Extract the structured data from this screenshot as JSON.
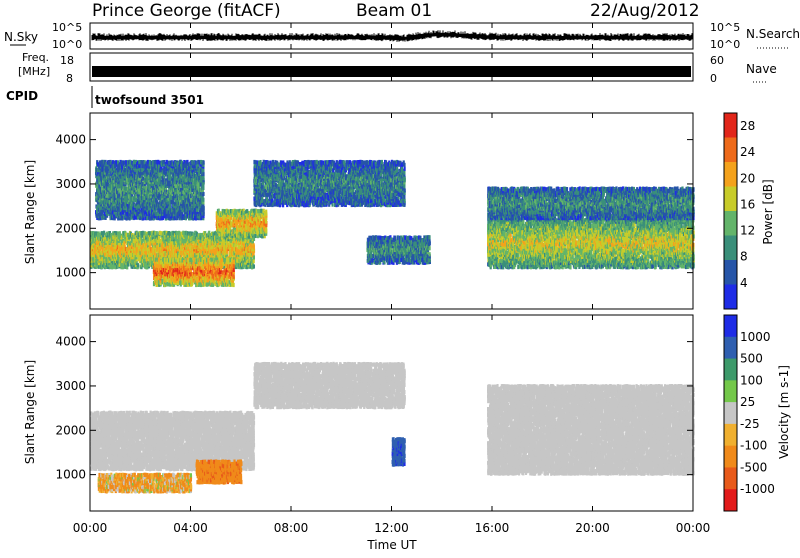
{
  "header": {
    "site": "Prince George (fitACF)",
    "beam": "Beam 01",
    "date": "22/Aug/2012"
  },
  "noise_panel": {
    "left_label": "N.Sky",
    "right_label": "N.Search",
    "left_ticks": [
      "10^5",
      "10^0"
    ],
    "right_ticks": [
      "10^5",
      "10^0"
    ]
  },
  "freq_panel": {
    "left_label_1": "Freq.",
    "left_label_2": "[MHz]",
    "left_ticks": [
      "18",
      "8"
    ],
    "right_label": "Nave",
    "right_ticks": [
      "60",
      "0"
    ]
  },
  "cpid": {
    "label": "CPID",
    "program": "twofsound 3501"
  },
  "x_axis": {
    "title": "Time UT",
    "ticks": [
      "00:00",
      "04:00",
      "08:00",
      "12:00",
      "16:00",
      "20:00",
      "00:00"
    ]
  },
  "colors": {
    "power_scale": [
      "#1e2ce6",
      "#2655a8",
      "#3a8f7a",
      "#63b46a",
      "#c8cc2a",
      "#f4a21c",
      "#ee6a1a",
      "#e2261a"
    ],
    "velocity_scale": [
      "#1e2ce6",
      "#2f5fb0",
      "#3d9a6a",
      "#74c84a",
      "#c6c6c6",
      "#f0b030",
      "#f08a1a",
      "#e85a1a",
      "#e21a1a"
    ]
  },
  "chart_data": [
    {
      "type": "heatmap",
      "title": "Power",
      "xlabel": "Time UT",
      "ylabel": "Slant Range [km]",
      "x_ticks": [
        "00:00",
        "04:00",
        "08:00",
        "12:00",
        "16:00",
        "20:00",
        "00:00"
      ],
      "xlim_hours": [
        0,
        24
      ],
      "y_ticks": [
        1000,
        2000,
        3000,
        4000
      ],
      "ylim": [
        180,
        4600
      ],
      "colorbar": {
        "label": "Power [dB]",
        "ticks": [
          4,
          8,
          12,
          16,
          20,
          24,
          28
        ],
        "range": [
          0,
          30
        ]
      },
      "echo_regions": [
        {
          "t_start": 0.0,
          "t_end": 6.5,
          "r_low": 1100,
          "r_high": 1900,
          "level": 20
        },
        {
          "t_start": 2.5,
          "t_end": 5.7,
          "r_low": 700,
          "r_high": 1300,
          "level": 26
        },
        {
          "t_start": 5.0,
          "t_end": 7.0,
          "r_low": 1800,
          "r_high": 2400,
          "level": 22
        },
        {
          "t_start": 0.2,
          "t_end": 4.5,
          "r_low": 2200,
          "r_high": 3500,
          "level": 10
        },
        {
          "t_start": 6.5,
          "t_end": 12.5,
          "r_low": 2500,
          "r_high": 3500,
          "level": 9
        },
        {
          "t_start": 11.0,
          "t_end": 13.5,
          "r_low": 1200,
          "r_high": 1800,
          "level": 10
        },
        {
          "t_start": 15.8,
          "t_end": 24.0,
          "r_low": 1100,
          "r_high": 2200,
          "level": 18
        },
        {
          "t_start": 15.8,
          "t_end": 24.0,
          "r_low": 2200,
          "r_high": 2900,
          "level": 10
        }
      ]
    },
    {
      "type": "heatmap",
      "title": "Velocity",
      "xlabel": "Time UT",
      "ylabel": "Slant Range [km]",
      "x_ticks": [
        "00:00",
        "04:00",
        "08:00",
        "12:00",
        "16:00",
        "20:00",
        "00:00"
      ],
      "xlim_hours": [
        0,
        24
      ],
      "y_ticks": [
        1000,
        2000,
        3000,
        4000
      ],
      "ylim": [
        180,
        4600
      ],
      "colorbar": {
        "label": "Velocity [m s-1]",
        "ticks": [
          "1000",
          "500",
          "100",
          "25",
          "-25",
          "-100",
          "-500",
          "-1000"
        ],
        "range": [
          -1000,
          1000
        ]
      },
      "echo_regions": [
        {
          "t_start": 0.0,
          "t_end": 6.5,
          "r_low": 1100,
          "r_high": 2400,
          "level": 0
        },
        {
          "t_start": 4.2,
          "t_end": 6.0,
          "r_low": 800,
          "r_high": 1300,
          "level": -400
        },
        {
          "t_start": 0.3,
          "t_end": 4.0,
          "r_low": 600,
          "r_high": 1000,
          "level": -100
        },
        {
          "t_start": 6.5,
          "t_end": 12.5,
          "r_low": 2500,
          "r_high": 3500,
          "level": 0
        },
        {
          "t_start": 12.0,
          "t_end": 12.5,
          "r_low": 1200,
          "r_high": 1800,
          "level": 900
        },
        {
          "t_start": 15.8,
          "t_end": 24.0,
          "r_low": 1000,
          "r_high": 3000,
          "level": 0
        }
      ]
    }
  ]
}
